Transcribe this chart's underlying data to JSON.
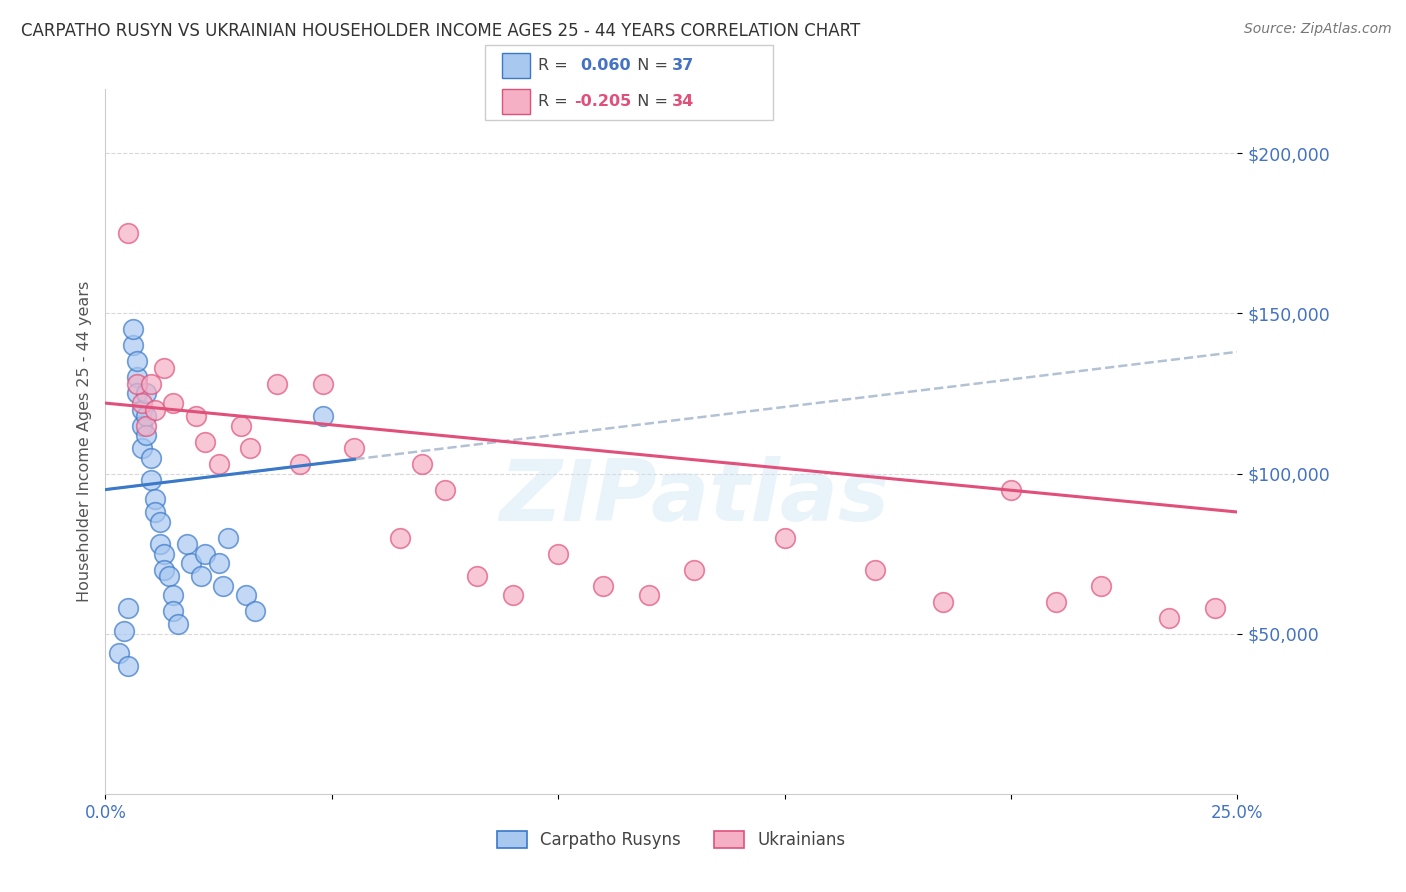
{
  "title": "CARPATHO RUSYN VS UKRAINIAN HOUSEHOLDER INCOME AGES 25 - 44 YEARS CORRELATION CHART",
  "source": "Source: ZipAtlas.com",
  "ylabel": "Householder Income Ages 25 - 44 years",
  "xlim": [
    0.0,
    0.25
  ],
  "ylim": [
    0,
    220000
  ],
  "yticks": [
    50000,
    100000,
    150000,
    200000
  ],
  "ytick_labels": [
    "$50,000",
    "$100,000",
    "$150,000",
    "$200,000"
  ],
  "r_blue": 0.06,
  "n_blue": 37,
  "r_pink": -0.205,
  "n_pink": 34,
  "bg_color": "#ffffff",
  "grid_color": "#d8d8d8",
  "blue_scatter_color": "#a8c8f0",
  "blue_line_color": "#3a78c9",
  "pink_scatter_color": "#f5b0c5",
  "pink_line_color": "#e0507a",
  "tick_label_color": "#4472c4",
  "watermark": "ZIPatlas",
  "blue_scatter_x": [
    0.003,
    0.004,
    0.005,
    0.005,
    0.006,
    0.006,
    0.007,
    0.007,
    0.007,
    0.008,
    0.008,
    0.008,
    0.009,
    0.009,
    0.009,
    0.01,
    0.01,
    0.011,
    0.011,
    0.012,
    0.012,
    0.013,
    0.013,
    0.014,
    0.015,
    0.015,
    0.016,
    0.018,
    0.019,
    0.021,
    0.022,
    0.025,
    0.026,
    0.027,
    0.031,
    0.033,
    0.048
  ],
  "blue_scatter_y": [
    44000,
    51000,
    58000,
    40000,
    140000,
    145000,
    130000,
    135000,
    125000,
    120000,
    115000,
    108000,
    125000,
    118000,
    112000,
    105000,
    98000,
    92000,
    88000,
    85000,
    78000,
    75000,
    70000,
    68000,
    62000,
    57000,
    53000,
    78000,
    72000,
    68000,
    75000,
    72000,
    65000,
    80000,
    62000,
    57000,
    118000
  ],
  "pink_scatter_x": [
    0.005,
    0.007,
    0.008,
    0.009,
    0.01,
    0.011,
    0.013,
    0.015,
    0.02,
    0.022,
    0.025,
    0.03,
    0.032,
    0.038,
    0.043,
    0.048,
    0.055,
    0.065,
    0.07,
    0.075,
    0.082,
    0.09,
    0.1,
    0.11,
    0.12,
    0.13,
    0.15,
    0.17,
    0.185,
    0.2,
    0.21,
    0.22,
    0.235,
    0.245
  ],
  "pink_scatter_y": [
    175000,
    128000,
    122000,
    115000,
    128000,
    120000,
    133000,
    122000,
    118000,
    110000,
    103000,
    115000,
    108000,
    128000,
    103000,
    128000,
    108000,
    80000,
    103000,
    95000,
    68000,
    62000,
    75000,
    65000,
    62000,
    70000,
    80000,
    70000,
    60000,
    95000,
    60000,
    65000,
    55000,
    58000
  ]
}
